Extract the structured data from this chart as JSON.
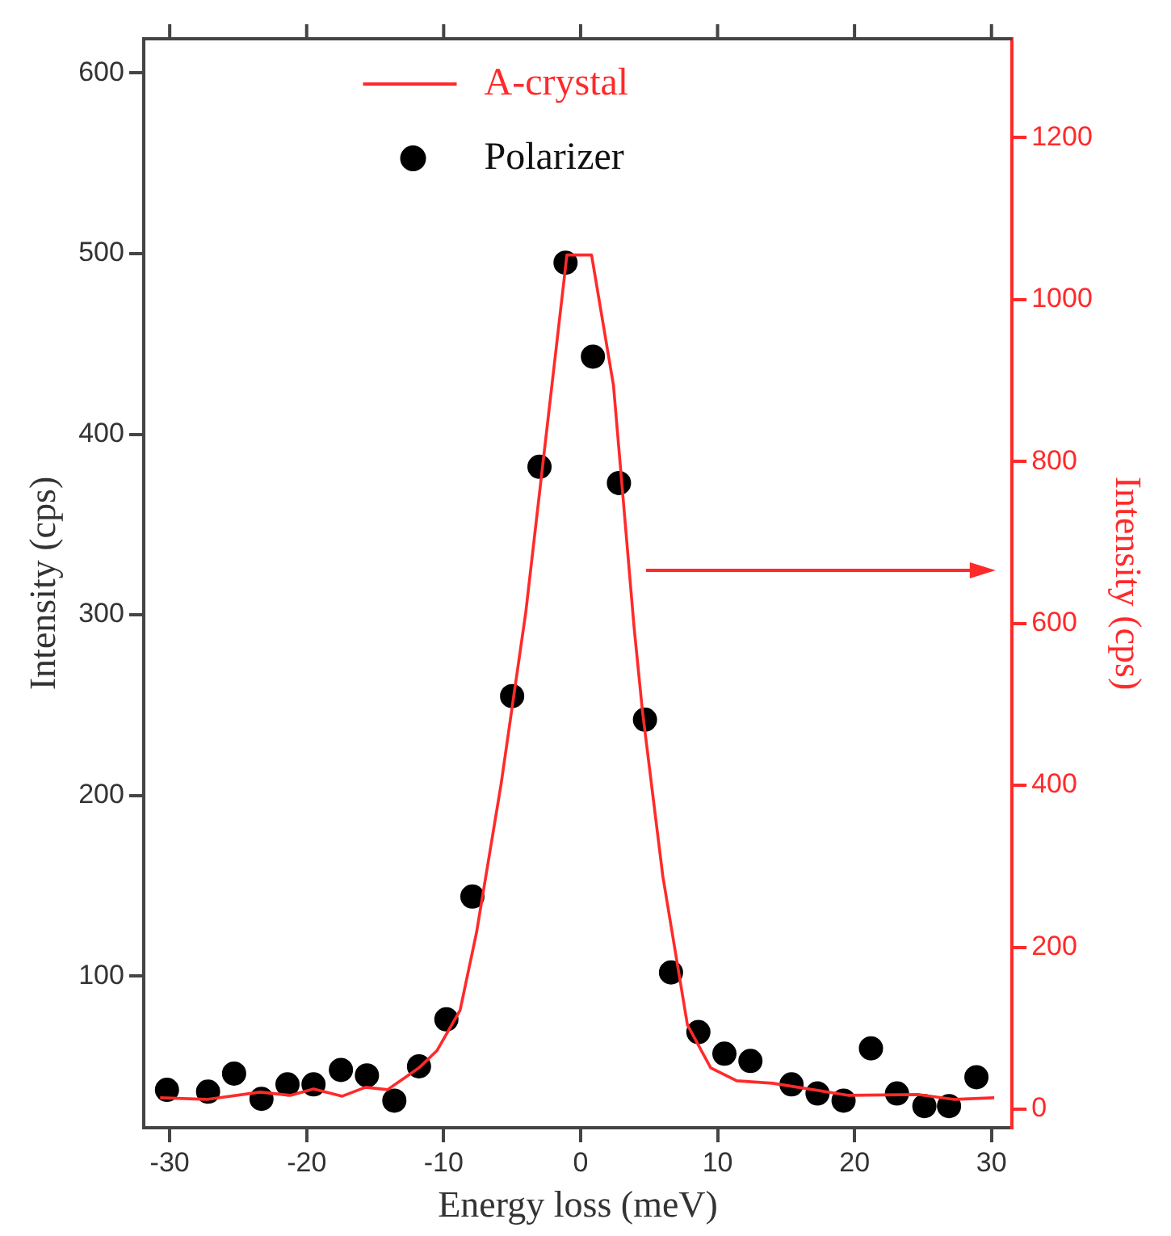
{
  "chart_data": {
    "type": "scatter",
    "xlabel": "Energy loss (meV)",
    "ylabel": "Intensity (cps)",
    "y2label": "Intensity (cps)",
    "xlim": [
      -31.9,
      31.5
    ],
    "xticks": [
      -30,
      -20,
      -10,
      0,
      10,
      20,
      30
    ],
    "ylim": [
      16,
      619
    ],
    "yticks": [
      100,
      200,
      300,
      400,
      500,
      600
    ],
    "y2lim": [
      -23,
      1322
    ],
    "y2ticks": [
      0,
      200,
      400,
      600,
      800,
      1000,
      1200
    ],
    "grid": false,
    "legend": "top",
    "series": [
      {
        "name": "A-crystal",
        "type": "line",
        "axis": "y2",
        "color": "#ff2a2a",
        "marker": "none",
        "line_style": "solid",
        "x": [
          -30.7,
          -27.3,
          -23.4,
          -21.2,
          -19.5,
          -17.4,
          -15.7,
          -14.1,
          -11.8,
          -10.5,
          -8.8,
          -7.6,
          -5.8,
          -4.0,
          -1.0,
          0.8,
          2.4,
          3.9,
          4.5,
          6.0,
          7.8,
          9.5,
          11.4,
          14.0,
          19.6,
          24.7,
          27.3,
          30.2
        ],
        "values": [
          14,
          12,
          21,
          17,
          25,
          16,
          27,
          24,
          51,
          72,
          122,
          218,
          402,
          614,
          1055,
          1055,
          894,
          596,
          494,
          288,
          104,
          51,
          35,
          32,
          17,
          18,
          12,
          14
        ]
      },
      {
        "name": "Polarizer",
        "color": "#000000",
        "marker": "circle",
        "x": [
          -30.2,
          -27.2,
          -25.3,
          -23.3,
          -21.4,
          -19.5,
          -17.5,
          -15.6,
          -13.6,
          -11.8,
          -9.8,
          -7.9,
          -5.0,
          -3.0,
          -1.1,
          0.9,
          2.8,
          4.7,
          6.6,
          8.6,
          10.5,
          12.4,
          15.4,
          17.3,
          19.2,
          21.2,
          23.1,
          25.1,
          26.9,
          28.9
        ],
        "values": [
          37,
          36,
          46,
          32,
          40,
          40,
          48,
          45,
          31,
          50,
          76,
          144,
          255,
          382,
          495,
          443,
          373,
          242,
          102,
          69,
          57,
          53,
          40,
          35,
          31,
          60,
          35,
          28,
          28,
          44
        ]
      }
    ]
  }
}
